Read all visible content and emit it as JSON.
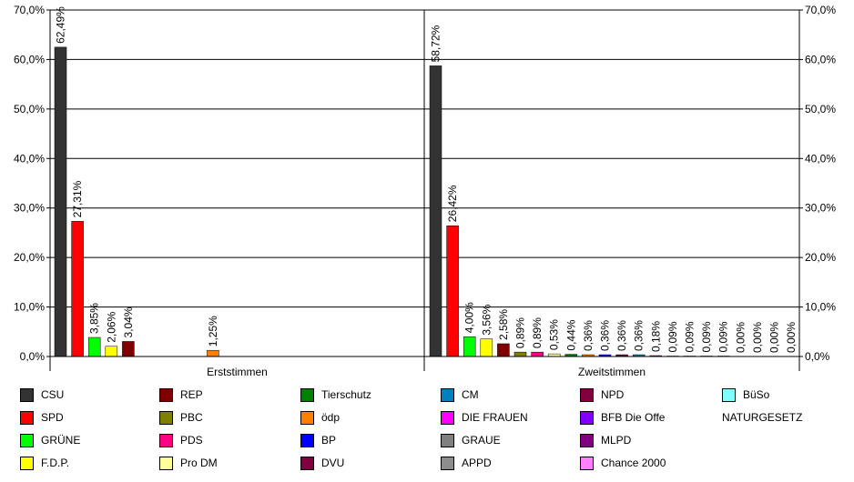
{
  "chart_data": {
    "type": "bar",
    "ylim": [
      0,
      70
    ],
    "y_ticks": [
      "0,0%",
      "10,0%",
      "20,0%",
      "30,0%",
      "40,0%",
      "50,0%",
      "60,0%",
      "70,0%"
    ],
    "y_tick_values": [
      0,
      10,
      20,
      30,
      40,
      50,
      60,
      70
    ],
    "grid": true,
    "legend_position": "bottom",
    "groups": [
      {
        "label": "Erststimmen",
        "bars": [
          {
            "party": "CSU",
            "value": 62.49,
            "label": "62,49%"
          },
          {
            "party": "SPD",
            "value": 27.31,
            "label": "27,31%"
          },
          {
            "party": "GRÜNE",
            "value": 3.85,
            "label": "3,85%"
          },
          {
            "party": "F.D.P.",
            "value": 2.06,
            "label": "2,06%"
          },
          {
            "party": "REP",
            "value": 3.04,
            "label": "3,04%"
          },
          {
            "party": "ödp",
            "value": 1.25,
            "label": "1,25%"
          }
        ]
      },
      {
        "label": "Zweitstimmen",
        "bars": [
          {
            "party": "CSU",
            "value": 58.72,
            "label": "58,72%"
          },
          {
            "party": "SPD",
            "value": 26.42,
            "label": "26,42%"
          },
          {
            "party": "GRÜNE",
            "value": 4.0,
            "label": "4,00%"
          },
          {
            "party": "F.D.P.",
            "value": 3.56,
            "label": "3,56%"
          },
          {
            "party": "REP",
            "value": 2.58,
            "label": "2,58%"
          },
          {
            "party": "PBC",
            "value": 0.89,
            "label": "0,89%"
          },
          {
            "party": "PDS",
            "value": 0.89,
            "label": "0,89%"
          },
          {
            "party": "Pro DM",
            "value": 0.53,
            "label": "0,53%"
          },
          {
            "party": "Tierschutz",
            "value": 0.44,
            "label": "0,44%"
          },
          {
            "party": "ödp",
            "value": 0.36,
            "label": "0,36%"
          },
          {
            "party": "BP",
            "value": 0.36,
            "label": "0,36%"
          },
          {
            "party": "DVU",
            "value": 0.36,
            "label": "0,36%"
          },
          {
            "party": "CM",
            "value": 0.36,
            "label": "0,36%"
          },
          {
            "party": "DIE FRAUEN",
            "value": 0.18,
            "label": "0,18%"
          },
          {
            "party": "GRAUE",
            "value": 0.09,
            "label": "0,09%"
          },
          {
            "party": "APPD",
            "value": 0.09,
            "label": "0,09%"
          },
          {
            "party": "NPD",
            "value": 0.09,
            "label": "0,09%"
          },
          {
            "party": "BFB Die Offe",
            "value": 0.09,
            "label": "0,09%"
          },
          {
            "party": "MLPD",
            "value": 0.0,
            "label": "0,00%"
          },
          {
            "party": "Chance 2000",
            "value": 0.0,
            "label": "0,00%"
          },
          {
            "party": "BüSo",
            "value": 0.0,
            "label": "0,00%"
          },
          {
            "party": "NATURGESETZ",
            "value": 0.0,
            "label": "0,00%"
          }
        ]
      }
    ],
    "legend": [
      {
        "name": "CSU",
        "color": "#333333"
      },
      {
        "name": "SPD",
        "color": "#ff0000"
      },
      {
        "name": "GRÜNE",
        "color": "#00ff00"
      },
      {
        "name": "F.D.P.",
        "color": "#ffff00"
      },
      {
        "name": "REP",
        "color": "#800000"
      },
      {
        "name": "PBC",
        "color": "#808000"
      },
      {
        "name": "PDS",
        "color": "#ff0080"
      },
      {
        "name": "Pro DM",
        "color": "#ffff99"
      },
      {
        "name": "Tierschutz",
        "color": "#008000"
      },
      {
        "name": "ödp",
        "color": "#ff8000"
      },
      {
        "name": "BP",
        "color": "#0000ff"
      },
      {
        "name": "DVU",
        "color": "#800040"
      },
      {
        "name": "CM",
        "color": "#0080c0"
      },
      {
        "name": "DIE FRAUEN",
        "color": "#ff00ff"
      },
      {
        "name": "GRAUE",
        "color": "#808080"
      },
      {
        "name": "APPD",
        "color": "#8c8c8c"
      },
      {
        "name": "NPD",
        "color": "#800040"
      },
      {
        "name": "BFB Die Offe",
        "color": "#8000ff"
      },
      {
        "name": "MLPD",
        "color": "#800080"
      },
      {
        "name": "Chance 2000",
        "color": "#ff80ff"
      },
      {
        "name": "BüSo",
        "color": "#80ffff"
      },
      {
        "name": "NATURGESETZ",
        "color": ""
      }
    ]
  }
}
